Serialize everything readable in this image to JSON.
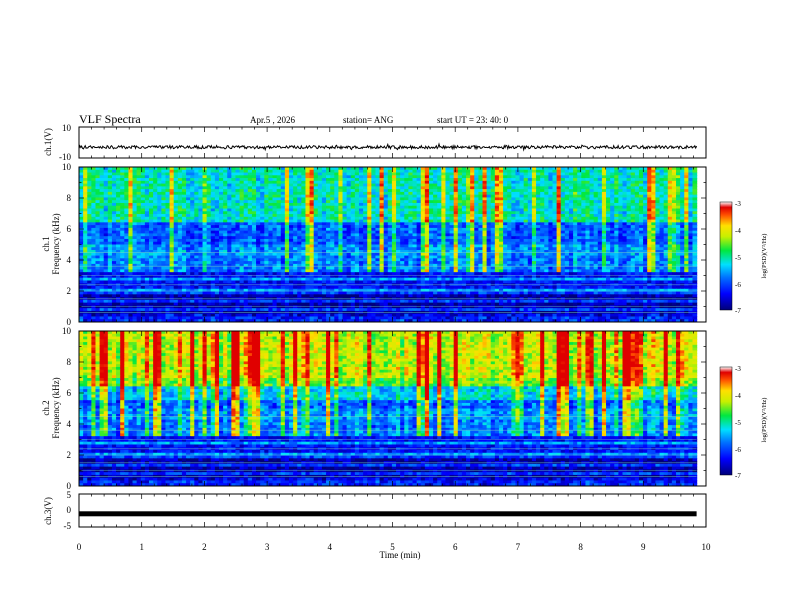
{
  "header": {
    "title": "VLF Spectra",
    "date": "Apr.5 , 2026",
    "station": "station= ANG",
    "start": "start UT = 23: 40: 0"
  },
  "chart_data": [
    {
      "type": "line",
      "id": "ch1-waveform",
      "ylabel": "ch.1(V)",
      "ylim": [
        -10,
        10
      ],
      "yticks": [
        "10",
        "-10"
      ],
      "baseline": -3,
      "noise_amplitude": 1,
      "xlim": [
        0,
        10
      ],
      "data_end_min": 9.85
    },
    {
      "type": "heatmap",
      "id": "ch1-spectrogram",
      "ylabel": "ch.1",
      "ylabel2": "Frequency (kHz)",
      "ylim": [
        0,
        10
      ],
      "yticks": [
        "0",
        "2",
        "4",
        "6",
        "8",
        "10"
      ],
      "xlim": [
        0,
        10
      ],
      "data_end_min": 9.85,
      "colorbar": {
        "label": "log(PSD)(V²/Hz)",
        "range": [
          -7,
          -3
        ],
        "ticks": [
          "-3",
          "-4",
          "-5",
          "-6",
          "-7"
        ]
      }
    },
    {
      "type": "heatmap",
      "id": "ch2-spectrogram",
      "ylabel": "ch.2",
      "ylabel2": "Frequency (kHz)",
      "ylim": [
        0,
        10
      ],
      "yticks": [
        "0",
        "2",
        "4",
        "6",
        "8",
        "10"
      ],
      "xlim": [
        0,
        10
      ],
      "data_end_min": 9.85,
      "colorbar": {
        "label": "log(PSD)(V²/Hz)",
        "range": [
          -7,
          -3
        ],
        "ticks": [
          "-3",
          "-4",
          "-5",
          "-6",
          "-7"
        ]
      }
    },
    {
      "type": "line",
      "id": "ch3-waveform",
      "ylabel": "ch.3(V)",
      "ylim": [
        -5,
        5
      ],
      "yticks": [
        "5",
        "0",
        "-5"
      ],
      "baseline": -1,
      "xlim": [
        0,
        10
      ],
      "data_end_min": 9.85,
      "xlabel": "Time (min)",
      "xticks": [
        "0",
        "1",
        "2",
        "3",
        "4",
        "5",
        "6",
        "7",
        "8",
        "9",
        "10"
      ]
    }
  ]
}
